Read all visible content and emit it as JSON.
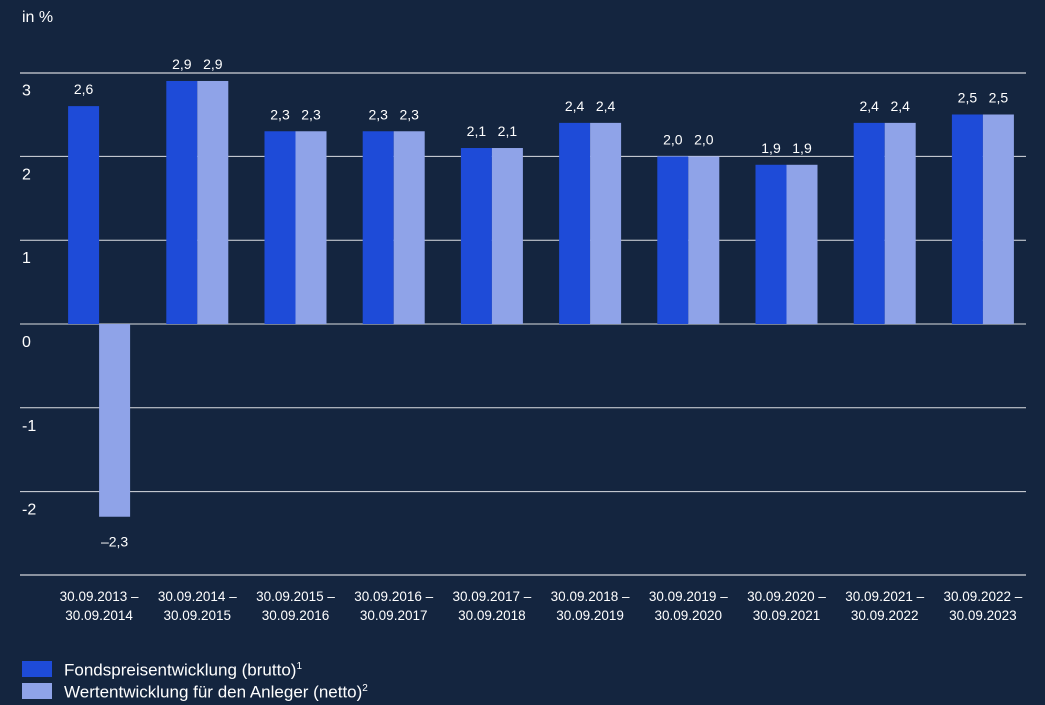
{
  "chart_data": {
    "type": "bar",
    "unit_label": "in %",
    "categories": [
      [
        "30.09.2013 –",
        "30.09.2014"
      ],
      [
        "30.09.2014 –",
        "30.09.2015"
      ],
      [
        "30.09.2015 –",
        "30.09.2016"
      ],
      [
        "30.09.2016 –",
        "30.09.2017"
      ],
      [
        "30.09.2017 –",
        "30.09.2018"
      ],
      [
        "30.09.2018 –",
        "30.09.2019"
      ],
      [
        "30.09.2019 –",
        "30.09.2020"
      ],
      [
        "30.09.2020 –",
        "30.09.2021"
      ],
      [
        "30.09.2021 –",
        "30.09.2022"
      ],
      [
        "30.09.2022 –",
        "30.09.2023"
      ]
    ],
    "series": [
      {
        "name": "Fondspreisentwicklung (brutto)",
        "footnote": "1",
        "color": "#1e4bd8",
        "values": [
          2.6,
          2.9,
          2.3,
          2.3,
          2.1,
          2.4,
          2.0,
          1.9,
          2.4,
          2.5
        ],
        "labels": [
          "2,6",
          "2,9",
          "2,3",
          "2,3",
          "2,1",
          "2,4",
          "2,0",
          "1,9",
          "2,4",
          "2,5"
        ]
      },
      {
        "name": "Wertentwicklung für den Anleger (netto)",
        "footnote": "2",
        "color": "#8fa3e8",
        "values": [
          -2.3,
          2.9,
          2.3,
          2.3,
          2.1,
          2.4,
          2.0,
          1.9,
          2.4,
          2.5
        ],
        "labels": [
          "–2,3",
          "2,9",
          "2,3",
          "2,3",
          "2,1",
          "2,4",
          "2,0",
          "1,9",
          "2,4",
          "2,5"
        ]
      }
    ],
    "y_ticks": [
      3,
      2,
      1,
      0,
      -1,
      -2
    ],
    "y_tick_labels": [
      "3",
      "2",
      "1",
      "0",
      "-1",
      "-2"
    ],
    "ylim": [
      -3,
      3
    ],
    "grid": true,
    "legend_position": "bottom-left"
  }
}
